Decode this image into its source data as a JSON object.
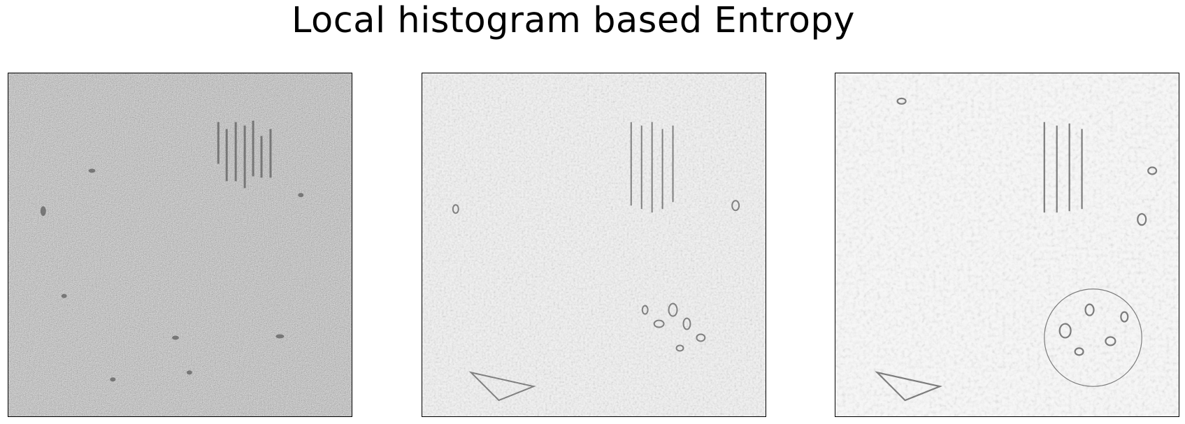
{
  "figure": {
    "title": "Local histogram based Entropy"
  },
  "panels": [
    {
      "base_gray": "#b9b9b9",
      "speckle": 0.62,
      "smoothing": 0.6
    },
    {
      "base_gray": "#e4e4e4",
      "speckle": 0.42,
      "smoothing": 1.6
    },
    {
      "base_gray": "#efefef",
      "speckle": 0.32,
      "smoothing": 2.6
    }
  ]
}
